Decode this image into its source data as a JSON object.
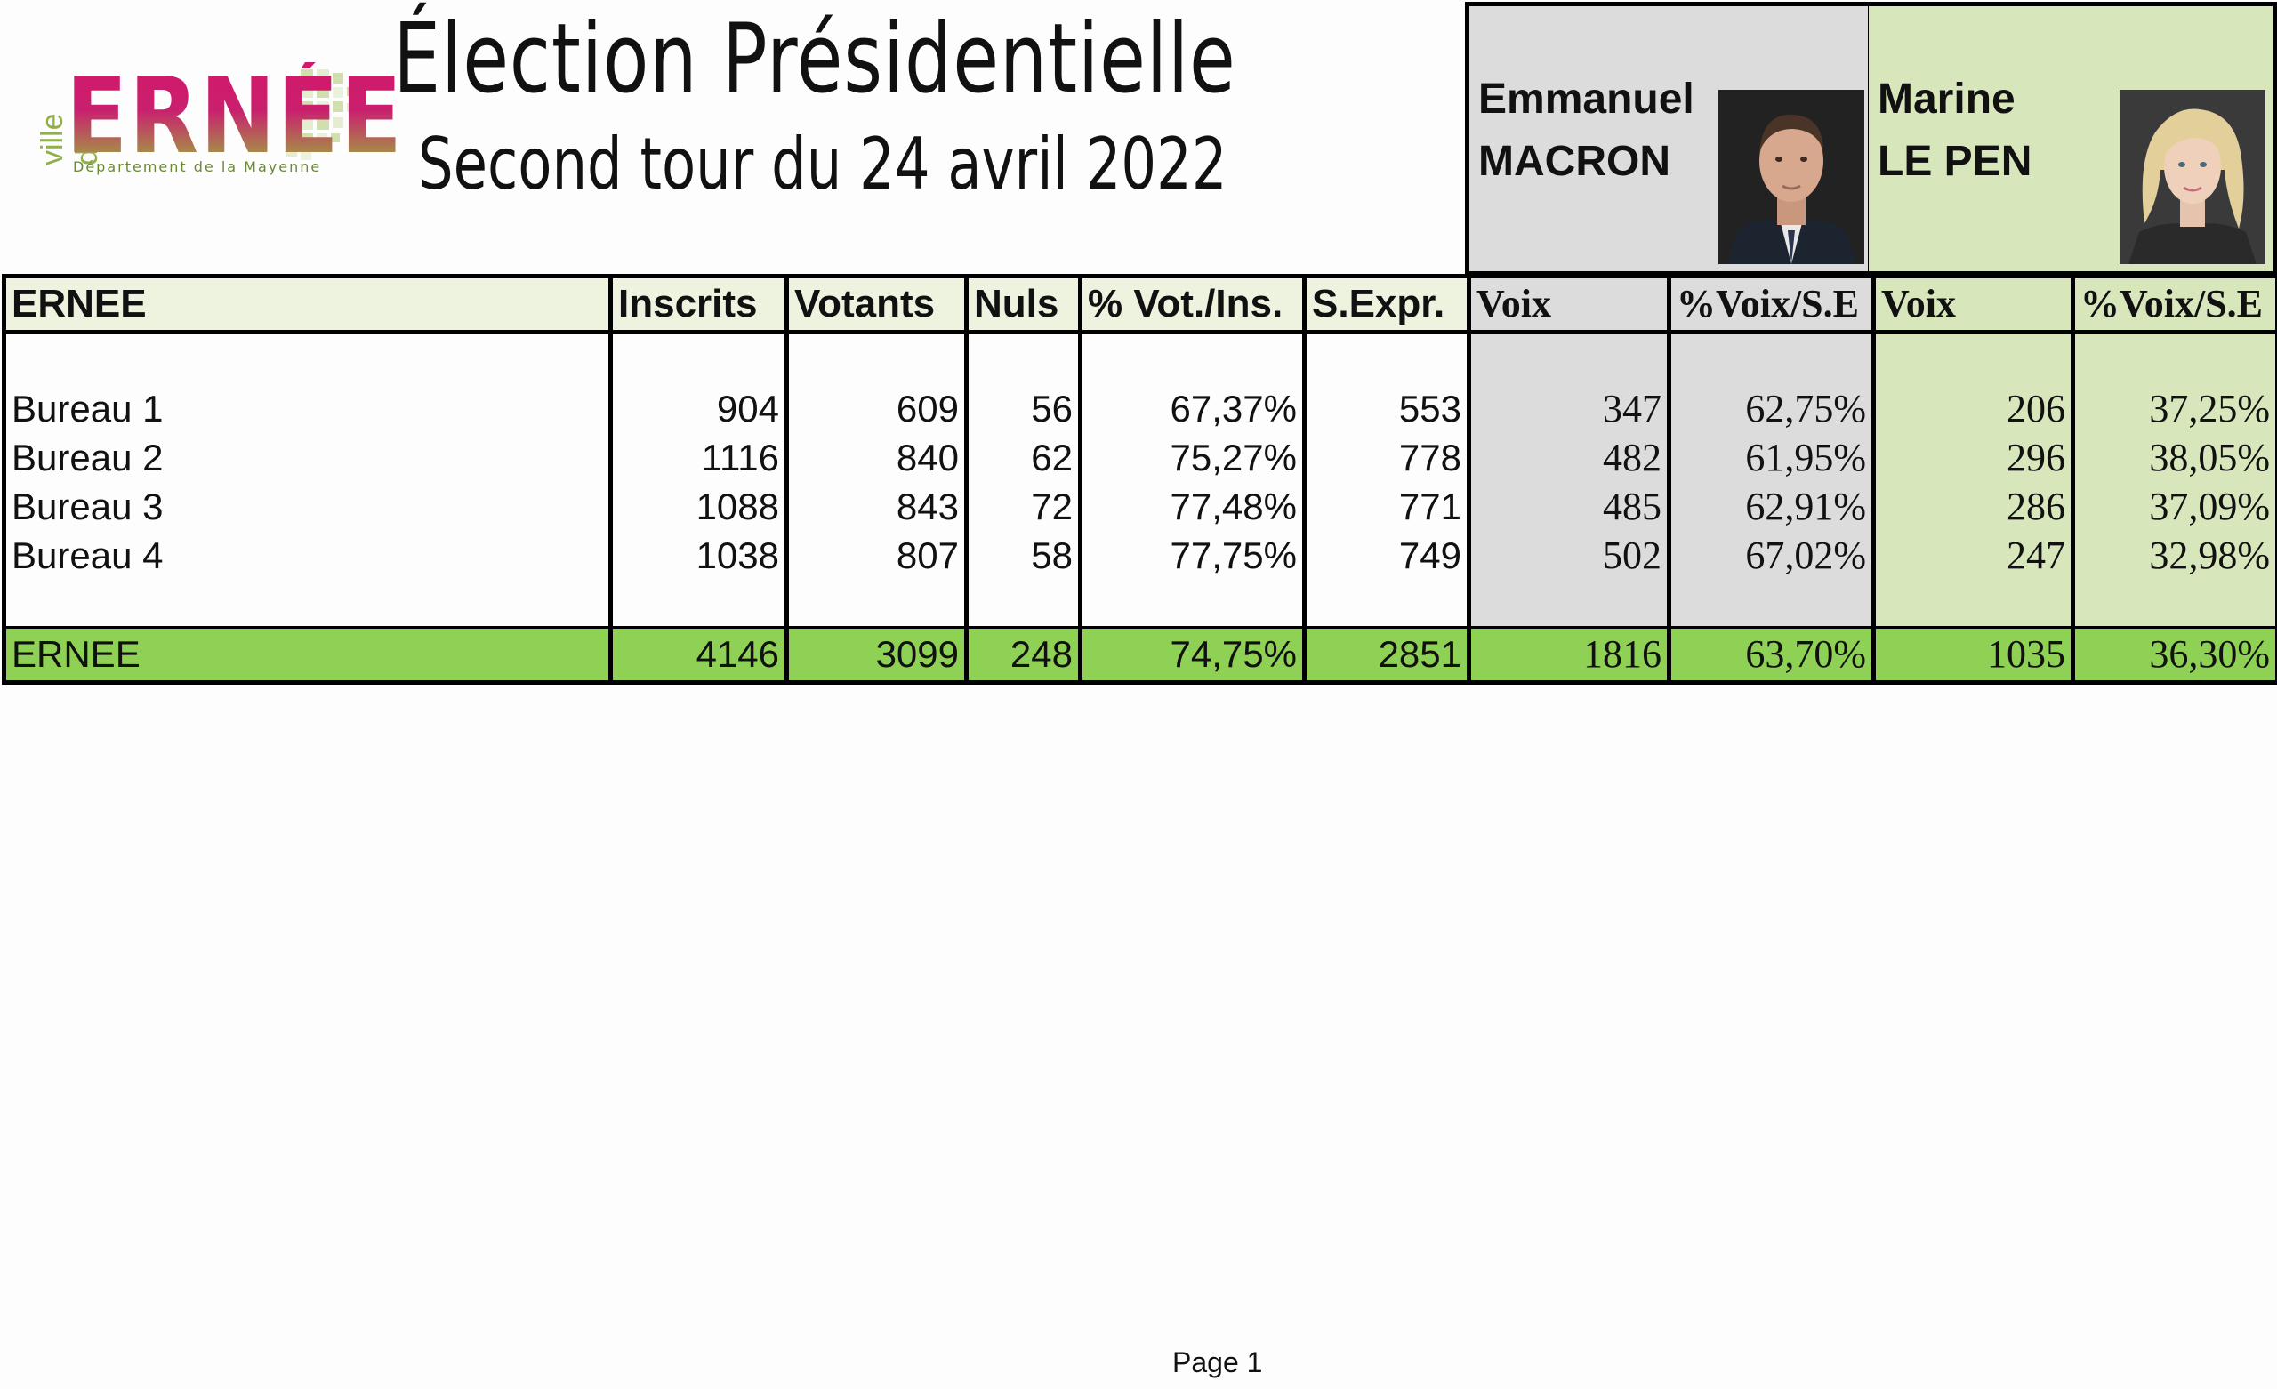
{
  "logo": {
    "ville": "ville d'",
    "word": "ERNÉE",
    "dept": "Département de la Mayenne"
  },
  "title": "Élection Présidentielle",
  "subtitle": "Second tour du 24 avril 2022",
  "candidates": {
    "macron": {
      "first": "Emmanuel",
      "last": "MACRON",
      "color": "#dcdcdc"
    },
    "lepen": {
      "first": "Marine",
      "last": "LE PEN",
      "color": "#d8e6bc"
    }
  },
  "table": {
    "headers": [
      "ERNEE",
      "Inscrits",
      "Votants",
      "Nuls",
      "% Vot./Ins.",
      "S.Expr.",
      "Voix",
      "%Voix/S.E",
      "Voix",
      "%Voix/S.E"
    ],
    "rows": [
      [
        "Bureau 1",
        "904",
        "609",
        "56",
        "67,37%",
        "553",
        "347",
        "62,75%",
        "206",
        "37,25%"
      ],
      [
        "Bureau 2",
        "1116",
        "840",
        "62",
        "75,27%",
        "778",
        "482",
        "61,95%",
        "296",
        "38,05%"
      ],
      [
        "Bureau 3",
        "1088",
        "843",
        "72",
        "77,48%",
        "771",
        "485",
        "62,91%",
        "286",
        "37,09%"
      ],
      [
        "Bureau 4",
        "1038",
        "807",
        "58",
        "77,75%",
        "749",
        "502",
        "67,02%",
        "247",
        "32,98%"
      ]
    ],
    "total": [
      "ERNEE",
      "4146",
      "3099",
      "248",
      "74,75%",
      "2851",
      "1816",
      "63,70%",
      "1035",
      "36,30%"
    ],
    "total_color": "#8fd155"
  },
  "footer": {
    "page": "Page 1"
  }
}
